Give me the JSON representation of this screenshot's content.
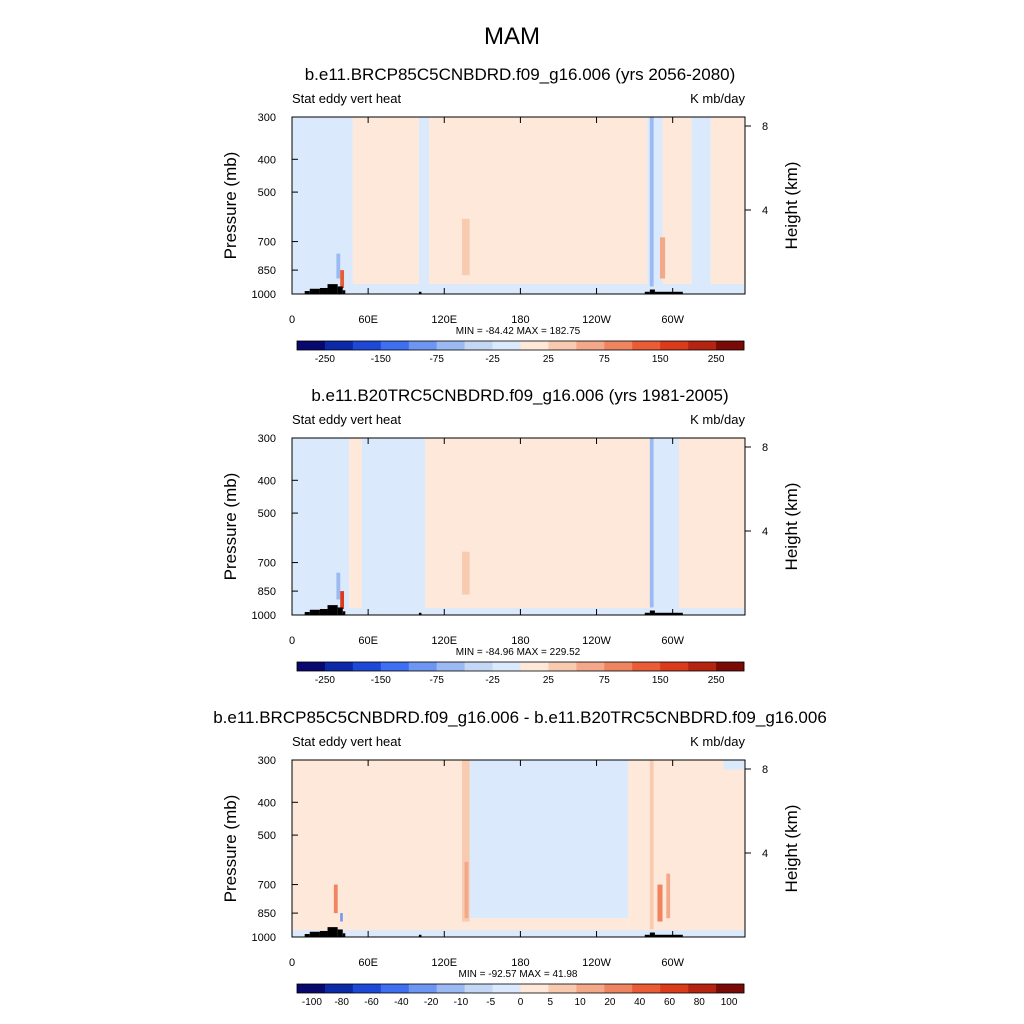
{
  "figure_title": "MAM",
  "chart_data": [
    {
      "type": "heatmap",
      "title": "b.e11.BRCP85C5CNBDRD.f09_g16.006 (yrs 2056-2080)",
      "left_label": "Stat eddy vert heat",
      "right_label": "K mb/day",
      "ylabel": "Pressure (mb)",
      "ylabel_right": "Height (km)",
      "x_ticks": [
        "0",
        "60E",
        "120E",
        "180",
        "120W",
        "60W"
      ],
      "x_tick_values": [
        0,
        60,
        120,
        180,
        240,
        300
      ],
      "xlim": [
        0,
        357
      ],
      "y_ticks": [
        "300",
        "400",
        "500",
        "700",
        "850",
        "1000"
      ],
      "y_tick_values": [
        300,
        400,
        500,
        700,
        850,
        1000
      ],
      "ylim": [
        1000,
        300
      ],
      "height_ticks": [
        "8",
        "4"
      ],
      "height_tick_values": [
        8,
        4
      ],
      "stats": "MIN = -84.42  MAX = 182.75",
      "min": -84.42,
      "max": 182.75,
      "colorbar_labels": [
        "-250",
        "-150",
        "-75",
        "-25",
        "25",
        "75",
        "150",
        "250"
      ],
      "colorbar_levels": [
        -300,
        -250,
        -200,
        -150,
        -100,
        -75,
        -50,
        -25,
        0,
        25,
        50,
        75,
        100,
        150,
        200,
        250,
        300
      ],
      "colorbar_colors": [
        "#08086e",
        "#0c2aa8",
        "#1d49d6",
        "#3d6ff0",
        "#6d96f2",
        "#9bb9f2",
        "#c4d8f5",
        "#dae9fb",
        "#fde8d9",
        "#f8cbb0",
        "#f2a889",
        "#ef8460",
        "#ea5c36",
        "#d93b1b",
        "#b52410",
        "#7a0a06"
      ],
      "features": [
        {
          "x0": 0,
          "x1": 48,
          "p_top": 300,
          "p_bot": 985,
          "value": -10
        },
        {
          "x0": 48,
          "x1": 100,
          "p_top": 300,
          "p_bot": 985,
          "value": 8
        },
        {
          "x0": 100,
          "x1": 108,
          "p_top": 300,
          "p_bot": 985,
          "value": -6
        },
        {
          "x0": 108,
          "x1": 280,
          "p_top": 300,
          "p_bot": 985,
          "value": 10
        },
        {
          "x0": 280,
          "x1": 292,
          "p_top": 300,
          "p_bot": 985,
          "value": -12
        },
        {
          "x0": 292,
          "x1": 315,
          "p_top": 300,
          "p_bot": 985,
          "value": 12
        },
        {
          "x0": 315,
          "x1": 330,
          "p_top": 300,
          "p_bot": 985,
          "value": -15
        },
        {
          "x0": 330,
          "x1": 357,
          "p_top": 300,
          "p_bot": 985,
          "value": 6
        },
        {
          "x0": 0,
          "x1": 357,
          "p_top": 935,
          "p_bot": 1000,
          "value": -8
        },
        {
          "x0": 134,
          "x1": 140,
          "p_top": 600,
          "p_bot": 880,
          "value": 45
        },
        {
          "x0": 35,
          "x1": 38,
          "p_top": 760,
          "p_bot": 900,
          "value": -60
        },
        {
          "x0": 38,
          "x1": 41,
          "p_top": 850,
          "p_bot": 960,
          "value": 120
        },
        {
          "x0": 282,
          "x1": 285,
          "p_top": 300,
          "p_bot": 950,
          "value": -70
        },
        {
          "x0": 290,
          "x1": 294,
          "p_top": 680,
          "p_bot": 900,
          "value": 60
        }
      ],
      "topography": [
        {
          "x0": 10,
          "x1": 14,
          "p_top": 980
        },
        {
          "x0": 14,
          "x1": 22,
          "p_top": 965
        },
        {
          "x0": 22,
          "x1": 28,
          "p_top": 960
        },
        {
          "x0": 28,
          "x1": 36,
          "p_top": 935
        },
        {
          "x0": 36,
          "x1": 40,
          "p_top": 950
        },
        {
          "x0": 40,
          "x1": 42,
          "p_top": 975
        },
        {
          "x0": 100,
          "x1": 102,
          "p_top": 985
        },
        {
          "x0": 278,
          "x1": 282,
          "p_top": 985
        },
        {
          "x0": 282,
          "x1": 286,
          "p_top": 970
        },
        {
          "x0": 286,
          "x1": 308,
          "p_top": 985
        }
      ]
    },
    {
      "type": "heatmap",
      "title": "b.e11.B20TRC5CNBDRD.f09_g16.006 (yrs 1981-2005)",
      "left_label": "Stat eddy vert heat",
      "right_label": "K mb/day",
      "ylabel": "Pressure (mb)",
      "ylabel_right": "Height (km)",
      "x_ticks": [
        "0",
        "60E",
        "120E",
        "180",
        "120W",
        "60W"
      ],
      "x_tick_values": [
        0,
        60,
        120,
        180,
        240,
        300
      ],
      "xlim": [
        0,
        357
      ],
      "y_ticks": [
        "300",
        "400",
        "500",
        "700",
        "850",
        "1000"
      ],
      "y_tick_values": [
        300,
        400,
        500,
        700,
        850,
        1000
      ],
      "ylim": [
        1000,
        300
      ],
      "height_ticks": [
        "8",
        "4"
      ],
      "height_tick_values": [
        8,
        4
      ],
      "stats": "MIN = -84.96  MAX = 229.52",
      "min": -84.96,
      "max": 229.52,
      "colorbar_labels": [
        "-250",
        "-150",
        "-75",
        "-25",
        "25",
        "75",
        "150",
        "250"
      ],
      "colorbar_levels": [
        -300,
        -250,
        -200,
        -150,
        -100,
        -75,
        -50,
        -25,
        0,
        25,
        50,
        75,
        100,
        150,
        200,
        250,
        300
      ],
      "colorbar_colors": [
        "#08086e",
        "#0c2aa8",
        "#1d49d6",
        "#3d6ff0",
        "#6d96f2",
        "#9bb9f2",
        "#c4d8f5",
        "#dae9fb",
        "#fde8d9",
        "#f8cbb0",
        "#f2a889",
        "#ef8460",
        "#ea5c36",
        "#d93b1b",
        "#b52410",
        "#7a0a06"
      ],
      "features": [
        {
          "x0": 0,
          "x1": 45,
          "p_top": 300,
          "p_bot": 985,
          "value": -10
        },
        {
          "x0": 45,
          "x1": 55,
          "p_top": 300,
          "p_bot": 985,
          "value": 8
        },
        {
          "x0": 55,
          "x1": 105,
          "p_top": 300,
          "p_bot": 985,
          "value": -8
        },
        {
          "x0": 105,
          "x1": 285,
          "p_top": 300,
          "p_bot": 985,
          "value": 10
        },
        {
          "x0": 285,
          "x1": 305,
          "p_top": 300,
          "p_bot": 985,
          "value": -10
        },
        {
          "x0": 305,
          "x1": 357,
          "p_top": 300,
          "p_bot": 985,
          "value": 5
        },
        {
          "x0": 0,
          "x1": 357,
          "p_top": 955,
          "p_bot": 1000,
          "value": -8
        },
        {
          "x0": 134,
          "x1": 140,
          "p_top": 650,
          "p_bot": 870,
          "value": 40
        },
        {
          "x0": 35,
          "x1": 38,
          "p_top": 750,
          "p_bot": 900,
          "value": -55
        },
        {
          "x0": 38,
          "x1": 41,
          "p_top": 850,
          "p_bot": 960,
          "value": 150
        },
        {
          "x0": 282,
          "x1": 285,
          "p_top": 300,
          "p_bot": 950,
          "value": -75
        }
      ],
      "topography": [
        {
          "x0": 10,
          "x1": 14,
          "p_top": 980
        },
        {
          "x0": 14,
          "x1": 22,
          "p_top": 965
        },
        {
          "x0": 22,
          "x1": 28,
          "p_top": 960
        },
        {
          "x0": 28,
          "x1": 36,
          "p_top": 935
        },
        {
          "x0": 36,
          "x1": 40,
          "p_top": 950
        },
        {
          "x0": 40,
          "x1": 42,
          "p_top": 975
        },
        {
          "x0": 100,
          "x1": 102,
          "p_top": 985
        },
        {
          "x0": 278,
          "x1": 282,
          "p_top": 985
        },
        {
          "x0": 282,
          "x1": 286,
          "p_top": 970
        },
        {
          "x0": 286,
          "x1": 308,
          "p_top": 985
        }
      ]
    },
    {
      "type": "heatmap",
      "title": "b.e11.BRCP85C5CNBDRD.f09_g16.006 - b.e11.B20TRC5CNBDRD.f09_g16.006",
      "left_label": "Stat eddy vert heat",
      "right_label": "K mb/day",
      "ylabel": "Pressure (mb)",
      "ylabel_right": "Height (km)",
      "x_ticks": [
        "0",
        "60E",
        "120E",
        "180",
        "120W",
        "60W"
      ],
      "x_tick_values": [
        0,
        60,
        120,
        180,
        240,
        300
      ],
      "xlim": [
        0,
        357
      ],
      "y_ticks": [
        "300",
        "400",
        "500",
        "700",
        "850",
        "1000"
      ],
      "y_tick_values": [
        300,
        400,
        500,
        700,
        850,
        1000
      ],
      "ylim": [
        1000,
        300
      ],
      "height_ticks": [
        "8",
        "4"
      ],
      "height_tick_values": [
        8,
        4
      ],
      "stats": "MIN = -92.57  MAX = 41.98",
      "min": -92.57,
      "max": 41.98,
      "colorbar_labels": [
        "-100",
        "-80",
        "-60",
        "-40",
        "-20",
        "-10",
        "-5",
        "0",
        "5",
        "10",
        "20",
        "40",
        "60",
        "80",
        "100"
      ],
      "colorbar_levels": [
        -120,
        -100,
        -80,
        -60,
        -40,
        -20,
        -10,
        -5,
        0,
        5,
        10,
        20,
        40,
        60,
        80,
        100,
        120
      ],
      "colorbar_colors": [
        "#08086e",
        "#0c2aa8",
        "#1d49d6",
        "#3d6ff0",
        "#6d96f2",
        "#9bb9f2",
        "#c4d8f5",
        "#dae9fb",
        "#fde8d9",
        "#f8cbb0",
        "#f2a889",
        "#ef8460",
        "#ea5c36",
        "#d93b1b",
        "#b52410",
        "#7a0a06"
      ],
      "features": [
        {
          "x0": 0,
          "x1": 140,
          "p_top": 300,
          "p_bot": 985,
          "value": 2
        },
        {
          "x0": 140,
          "x1": 265,
          "p_top": 300,
          "p_bot": 880,
          "value": -2
        },
        {
          "x0": 140,
          "x1": 265,
          "p_top": 880,
          "p_bot": 985,
          "value": 2
        },
        {
          "x0": 265,
          "x1": 357,
          "p_top": 300,
          "p_bot": 985,
          "value": 2
        },
        {
          "x0": 0,
          "x1": 357,
          "p_top": 955,
          "p_bot": 1000,
          "value": -2
        },
        {
          "x0": 340,
          "x1": 357,
          "p_top": 300,
          "p_bot": 320,
          "value": -2
        },
        {
          "x0": 134,
          "x1": 140,
          "p_top": 300,
          "p_bot": 900,
          "value": 8
        },
        {
          "x0": 136,
          "x1": 139,
          "p_top": 600,
          "p_bot": 880,
          "value": 15
        },
        {
          "x0": 33,
          "x1": 36,
          "p_top": 700,
          "p_bot": 850,
          "value": 20
        },
        {
          "x0": 38,
          "x1": 40,
          "p_top": 850,
          "p_bot": 900,
          "value": -30
        },
        {
          "x0": 282,
          "x1": 285,
          "p_top": 300,
          "p_bot": 950,
          "value": 8
        },
        {
          "x0": 288,
          "x1": 292,
          "p_top": 700,
          "p_bot": 900,
          "value": 30
        },
        {
          "x0": 295,
          "x1": 298,
          "p_top": 650,
          "p_bot": 880,
          "value": 12
        }
      ],
      "topography": [
        {
          "x0": 10,
          "x1": 14,
          "p_top": 980
        },
        {
          "x0": 14,
          "x1": 22,
          "p_top": 965
        },
        {
          "x0": 22,
          "x1": 28,
          "p_top": 960
        },
        {
          "x0": 28,
          "x1": 36,
          "p_top": 935
        },
        {
          "x0": 36,
          "x1": 40,
          "p_top": 950
        },
        {
          "x0": 40,
          "x1": 42,
          "p_top": 975
        },
        {
          "x0": 100,
          "x1": 102,
          "p_top": 985
        },
        {
          "x0": 278,
          "x1": 282,
          "p_top": 985
        },
        {
          "x0": 282,
          "x1": 286,
          "p_top": 970
        },
        {
          "x0": 286,
          "x1": 308,
          "p_top": 985
        }
      ]
    }
  ]
}
